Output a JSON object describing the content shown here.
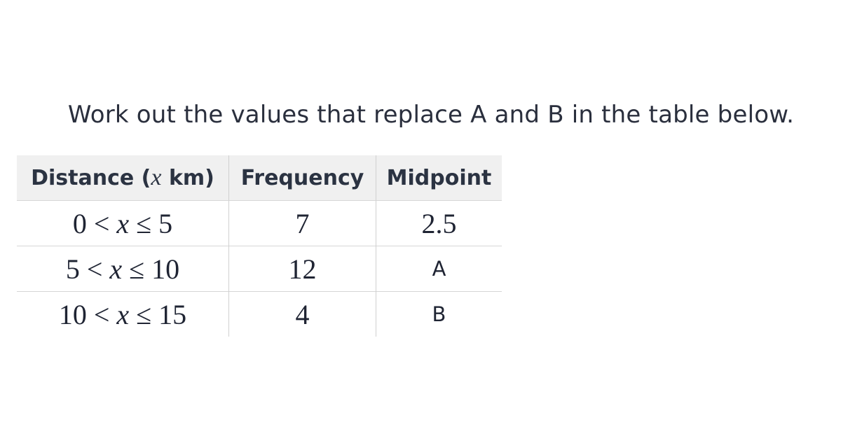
{
  "question": "Work out the values that replace A and B in the table below.",
  "table": {
    "headers": {
      "distance_prefix": "Distance (",
      "distance_var": "x",
      "distance_suffix": " km)",
      "frequency": "Frequency",
      "midpoint": "Midpoint"
    },
    "rows": [
      {
        "low": "0",
        "lt": " < ",
        "var": "x",
        "le": " ≤ ",
        "high": "5",
        "frequency": "7",
        "midpoint": "2.5"
      },
      {
        "low": "5",
        "lt": " < ",
        "var": "x",
        "le": " ≤ ",
        "high": "10",
        "frequency": "12",
        "midpoint": "A"
      },
      {
        "low": "10",
        "lt": " < ",
        "var": "x",
        "le": " ≤ ",
        "high": "15",
        "frequency": "4",
        "midpoint": "B"
      }
    ]
  }
}
